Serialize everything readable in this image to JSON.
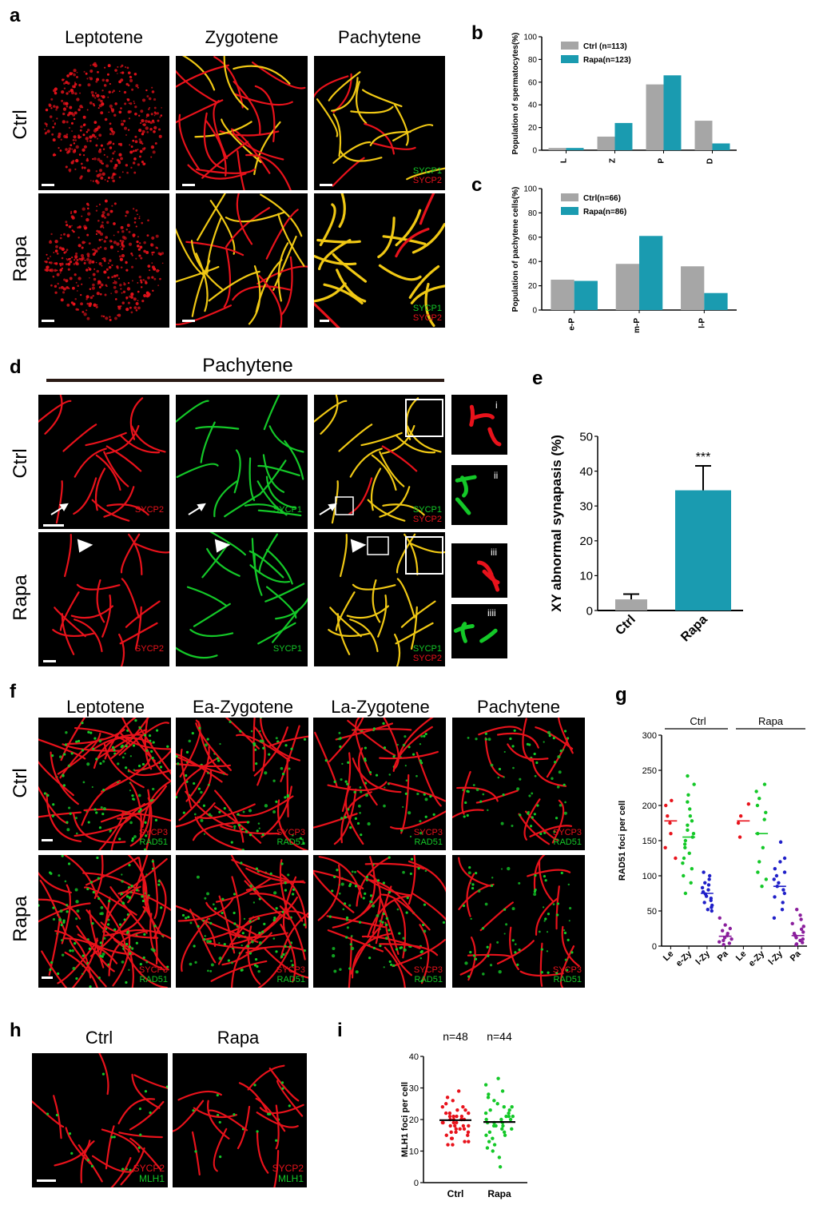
{
  "panel_labels": {
    "a": "a",
    "b": "b",
    "c": "c",
    "d": "d",
    "e": "e",
    "f": "f",
    "g": "g",
    "h": "h",
    "i": "i"
  },
  "panel_a": {
    "cols": [
      "Leptotene",
      "Zygotene",
      "Pachytene"
    ],
    "rows": [
      "Ctrl",
      "Rapa"
    ],
    "marker1": "SYCP1",
    "marker2": "SYCP2"
  },
  "panel_d": {
    "title": "Pachytene",
    "rows": [
      "Ctrl",
      "Rapa"
    ],
    "sycp2": "SYCP2",
    "sycp1": "SYCP1",
    "insets": [
      "i",
      "ii",
      "iii",
      "iiii"
    ]
  },
  "panel_f": {
    "cols": [
      "Leptotene",
      "Ea-Zygotene",
      "La-Zygotene",
      "Pachytene"
    ],
    "rows": [
      "Ctrl",
      "Rapa"
    ],
    "marker1": "SYCP3",
    "marker2": "RAD51"
  },
  "panel_h": {
    "cols": [
      "Ctrl",
      "Rapa"
    ],
    "marker1": "SYCP2",
    "marker2": "MLH1"
  },
  "colors": {
    "ctrl": "#a6a6a6",
    "rapa": "#1a9bb0",
    "red": "#e8121b",
    "green": "#14c828",
    "blue": "#1f1fc8",
    "purple": "#8a1e9c"
  },
  "chart_data": [
    {
      "id": "b",
      "type": "bar",
      "categories": [
        "L",
        "Z",
        "P",
        "D"
      ],
      "ylabel": "Population of spermatocytes(%)",
      "ylim": [
        0,
        100
      ],
      "yticks": [
        0,
        20,
        40,
        60,
        80,
        100
      ],
      "series": [
        {
          "name": "Ctrl (n=113)",
          "values": [
            2,
            12,
            58,
            26
          ]
        },
        {
          "name": "Rapa(n=123)",
          "values": [
            2,
            24,
            66,
            6
          ]
        }
      ],
      "legend": "top-left"
    },
    {
      "id": "c",
      "type": "bar",
      "categories": [
        "e-P",
        "m-P",
        "l-P"
      ],
      "ylabel": "Population of pachytene cells(%)",
      "ylim": [
        0,
        100
      ],
      "yticks": [
        0,
        20,
        40,
        60,
        80,
        100
      ],
      "series": [
        {
          "name": "Ctrl(n=66)",
          "values": [
            25,
            38,
            36
          ]
        },
        {
          "name": "Rapa(n=86)",
          "values": [
            24,
            61,
            14
          ]
        }
      ],
      "legend": "top-left"
    },
    {
      "id": "e",
      "type": "bar",
      "categories": [
        "Ctrl",
        "Rapa"
      ],
      "ylabel": "XY abnormal synapasis (%)",
      "ylim": [
        0,
        50
      ],
      "yticks": [
        0,
        10,
        20,
        30,
        40,
        50
      ],
      "values": [
        3.2,
        34.5
      ],
      "errors": [
        1.5,
        7
      ],
      "annotation": "***"
    },
    {
      "id": "g",
      "type": "scatter",
      "categories": [
        "Le",
        "e-Zy",
        "l-Zy",
        "Pa",
        "Le",
        "e-Zy",
        "l-Zy",
        "Pa"
      ],
      "groups": [
        "Ctrl",
        "Rapa"
      ],
      "ylabel": "RAD51 foci per cell",
      "ylim": [
        0,
        300
      ],
      "yticks": [
        0,
        50,
        100,
        150,
        200,
        250,
        300
      ],
      "means": [
        178,
        155,
        75,
        14,
        178,
        160,
        85,
        15
      ],
      "points": [
        [
          207,
          200,
          185,
          175,
          160,
          140,
          125
        ],
        [
          242,
          230,
          215,
          205,
          195,
          185,
          178,
          172,
          165,
          160,
          155,
          150,
          145,
          140,
          132,
          125,
          118,
          110,
          100,
          90,
          75
        ],
        [
          105,
          100,
          95,
          90,
          87,
          83,
          80,
          77,
          74,
          71,
          68,
          65,
          62,
          58,
          55,
          52,
          50
        ],
        [
          40,
          30,
          25,
          22,
          18,
          15,
          12,
          10,
          8,
          6,
          4,
          2
        ],
        [
          202,
          185,
          175,
          155
        ],
        [
          230,
          220,
          210,
          200,
          190,
          180,
          160,
          140,
          120,
          105,
          95,
          85
        ],
        [
          148,
          125,
          120,
          110,
          105,
          100,
          95,
          90,
          85,
          80,
          75,
          70,
          62,
          52,
          40
        ],
        [
          52,
          44,
          38,
          32,
          28,
          24,
          20,
          18,
          15,
          12,
          10,
          8,
          5,
          3,
          2
        ]
      ],
      "point_colors": [
        "#e8121b",
        "#14c828",
        "#1f1fc8",
        "#8a1e9c",
        "#e8121b",
        "#14c828",
        "#1f1fc8",
        "#8a1e9c"
      ]
    },
    {
      "id": "i",
      "type": "scatter",
      "categories": [
        "Ctrl",
        "Rapa"
      ],
      "ylabel": "MLH1 foci per cell",
      "ylim": [
        0,
        40
      ],
      "yticks": [
        0,
        10,
        20,
        30,
        40
      ],
      "annotations": [
        "n=48",
        "n=44"
      ],
      "means": [
        19.8,
        19.2
      ],
      "points": [
        [
          29,
          27,
          26,
          25,
          24,
          24,
          23,
          23,
          22,
          22,
          22,
          21,
          21,
          21,
          21,
          20,
          20,
          20,
          20,
          20,
          19,
          19,
          19,
          19,
          19,
          18,
          18,
          18,
          18,
          17,
          17,
          17,
          16,
          16,
          16,
          15,
          15,
          14,
          14,
          13,
          13,
          12,
          12
        ],
        [
          33,
          31,
          29,
          28,
          27,
          26,
          25,
          24,
          24,
          23,
          23,
          22,
          22,
          21,
          21,
          21,
          20,
          20,
          20,
          19,
          19,
          19,
          18,
          18,
          18,
          17,
          17,
          16,
          16,
          15,
          15,
          14,
          13,
          12,
          11,
          10,
          8,
          5
        ]
      ],
      "point_colors": [
        "#e8121b",
        "#14c828"
      ]
    }
  ]
}
